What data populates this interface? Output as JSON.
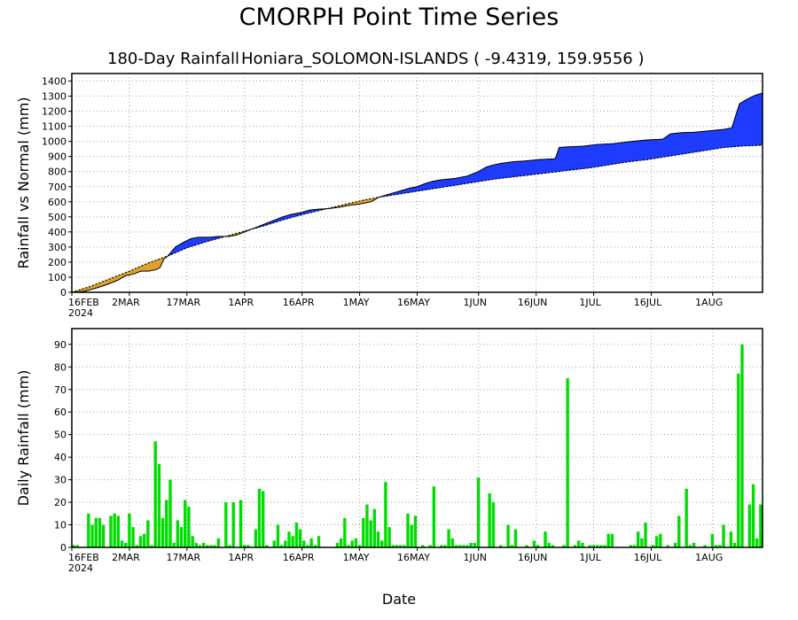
{
  "title": "CMORPH Point Time Series",
  "subtitle_left": "180-Day Rainfall",
  "subtitle_right": "Honiara_SOLOMON-ISLANDS ( -9.4319, 159.9556 )",
  "xlabel": "Date",
  "colors": {
    "surplus": "#1e3cff",
    "deficit": "#e0a030",
    "bars": "#00dd00",
    "grid": "#a0a0a0"
  },
  "chart_data": [
    {
      "type": "area",
      "ylabel": "Rainfall vs Normal (mm)",
      "ylim": [
        0,
        1450
      ],
      "yticks": [
        0,
        100,
        200,
        300,
        400,
        500,
        600,
        700,
        800,
        900,
        1000,
        1100,
        1200,
        1300,
        1400
      ],
      "xticks": [
        {
          "day": 0,
          "label": "16FEB",
          "sub": "2024"
        },
        {
          "day": 15,
          "label": "2MAR",
          "sub": ""
        },
        {
          "day": 30,
          "label": "17MAR",
          "sub": ""
        },
        {
          "day": 45,
          "label": "1APR",
          "sub": ""
        },
        {
          "day": 60,
          "label": "16APR",
          "sub": ""
        },
        {
          "day": 75,
          "label": "1MAY",
          "sub": ""
        },
        {
          "day": 90,
          "label": "16MAY",
          "sub": ""
        },
        {
          "day": 106,
          "label": "1JUN",
          "sub": ""
        },
        {
          "day": 121,
          "label": "16JUN",
          "sub": ""
        },
        {
          "day": 136,
          "label": "1JUL",
          "sub": ""
        },
        {
          "day": 151,
          "label": "16JUL",
          "sub": ""
        },
        {
          "day": 167,
          "label": "1AUG",
          "sub": ""
        }
      ],
      "xlim": [
        0,
        180
      ],
      "grid": true,
      "series": [
        {
          "role": "actual",
          "points": [
            [
              0,
              0
            ],
            [
              3,
              5
            ],
            [
              6,
              25
            ],
            [
              9,
              50
            ],
            [
              12,
              80
            ],
            [
              14,
              110
            ],
            [
              16,
              120
            ],
            [
              18,
              140
            ],
            [
              20,
              140
            ],
            [
              22,
              150
            ],
            [
              23,
              165
            ],
            [
              24,
              220
            ],
            [
              25,
              240
            ],
            [
              27,
              300
            ],
            [
              29,
              330
            ],
            [
              31,
              355
            ],
            [
              33,
              365
            ],
            [
              36,
              365
            ],
            [
              38,
              370
            ],
            [
              41,
              370
            ],
            [
              43,
              380
            ],
            [
              45,
              400
            ],
            [
              47,
              420
            ],
            [
              49,
              440
            ],
            [
              51,
              460
            ],
            [
              53,
              480
            ],
            [
              55,
              500
            ],
            [
              57,
              515
            ],
            [
              60,
              530
            ],
            [
              62,
              545
            ],
            [
              64,
              550
            ],
            [
              67,
              555
            ],
            [
              70,
              565
            ],
            [
              72,
              575
            ],
            [
              75,
              585
            ],
            [
              78,
              600
            ],
            [
              80,
              630
            ],
            [
              82,
              645
            ],
            [
              84,
              660
            ],
            [
              86,
              675
            ],
            [
              88,
              690
            ],
            [
              90,
              700
            ],
            [
              92,
              720
            ],
            [
              94,
              735
            ],
            [
              96,
              745
            ],
            [
              98,
              750
            ],
            [
              100,
              755
            ],
            [
              103,
              770
            ],
            [
              106,
              800
            ],
            [
              108,
              830
            ],
            [
              110,
              845
            ],
            [
              112,
              855
            ],
            [
              115,
              865
            ],
            [
              118,
              870
            ],
            [
              122,
              880
            ],
            [
              126,
              885
            ],
            [
              127,
              960
            ],
            [
              130,
              965
            ],
            [
              133,
              968
            ],
            [
              137,
              980
            ],
            [
              141,
              985
            ],
            [
              146,
              1000
            ],
            [
              150,
              1010
            ],
            [
              154,
              1015
            ],
            [
              156,
              1050
            ],
            [
              159,
              1058
            ],
            [
              162,
              1060
            ],
            [
              166,
              1070
            ],
            [
              170,
              1080
            ],
            [
              172,
              1090
            ],
            [
              173,
              1170
            ],
            [
              174,
              1250
            ],
            [
              176,
              1280
            ],
            [
              178,
              1305
            ],
            [
              180,
              1320
            ]
          ]
        },
        {
          "role": "normal",
          "points": [
            [
              0,
              0
            ],
            [
              5,
              40
            ],
            [
              10,
              90
            ],
            [
              15,
              140
            ],
            [
              20,
              195
            ],
            [
              25,
              240
            ],
            [
              30,
              295
            ],
            [
              35,
              335
            ],
            [
              40,
              370
            ],
            [
              45,
              405
            ],
            [
              50,
              440
            ],
            [
              55,
              480
            ],
            [
              60,
              515
            ],
            [
              65,
              545
            ],
            [
              70,
              575
            ],
            [
              75,
              605
            ],
            [
              80,
              630
            ],
            [
              85,
              650
            ],
            [
              90,
              670
            ],
            [
              95,
              690
            ],
            [
              100,
              710
            ],
            [
              105,
              730
            ],
            [
              110,
              750
            ],
            [
              115,
              765
            ],
            [
              120,
              780
            ],
            [
              125,
              795
            ],
            [
              130,
              810
            ],
            [
              135,
              825
            ],
            [
              140,
              845
            ],
            [
              145,
              865
            ],
            [
              150,
              880
            ],
            [
              155,
              900
            ],
            [
              160,
              920
            ],
            [
              165,
              940
            ],
            [
              170,
              960
            ],
            [
              175,
              970
            ],
            [
              180,
              975
            ]
          ]
        }
      ]
    },
    {
      "type": "bar",
      "ylabel": "Daily Rainfall (mm)",
      "ylim": [
        0,
        97
      ],
      "yticks": [
        0,
        10,
        20,
        30,
        40,
        50,
        60,
        70,
        80,
        90
      ],
      "xticks": [
        {
          "day": 0,
          "label": "16FEB",
          "sub": "2024"
        },
        {
          "day": 15,
          "label": "2MAR",
          "sub": ""
        },
        {
          "day": 30,
          "label": "17MAR",
          "sub": ""
        },
        {
          "day": 45,
          "label": "1APR",
          "sub": ""
        },
        {
          "day": 60,
          "label": "16APR",
          "sub": ""
        },
        {
          "day": 75,
          "label": "1MAY",
          "sub": ""
        },
        {
          "day": 90,
          "label": "16MAY",
          "sub": ""
        },
        {
          "day": 106,
          "label": "1JUN",
          "sub": ""
        },
        {
          "day": 121,
          "label": "16JUN",
          "sub": ""
        },
        {
          "day": 136,
          "label": "1JUL",
          "sub": ""
        },
        {
          "day": 151,
          "label": "16JUL",
          "sub": ""
        },
        {
          "day": 167,
          "label": "1AUG",
          "sub": ""
        }
      ],
      "xlim": [
        0,
        180
      ],
      "grid": true,
      "values": [
        1,
        1,
        0,
        0,
        15,
        10,
        13,
        13,
        10,
        0,
        14,
        15,
        14,
        3,
        2,
        15,
        9,
        1,
        5,
        6,
        12,
        1,
        47,
        37,
        13,
        21,
        30,
        2,
        12,
        9,
        21,
        18,
        5,
        2,
        1,
        2,
        1,
        1,
        1,
        4,
        0,
        20,
        1,
        20,
        0,
        21,
        1,
        1,
        0,
        8,
        26,
        25,
        1,
        0,
        3,
        10,
        1,
        3,
        7,
        5,
        11,
        8,
        3,
        1,
        4,
        1,
        5,
        0,
        0,
        0,
        0,
        2,
        4,
        13,
        1,
        3,
        4,
        1,
        13,
        19,
        12,
        17,
        7,
        3,
        29,
        9,
        1,
        1,
        1,
        1,
        15,
        10,
        14,
        0,
        1,
        0,
        1,
        27,
        0,
        1,
        1,
        8,
        4,
        1,
        1,
        1,
        1,
        2,
        2,
        31,
        0,
        0,
        24,
        20,
        0,
        1,
        0,
        10,
        1,
        8,
        0,
        0,
        1,
        0,
        3,
        1,
        0,
        7,
        2,
        1,
        0,
        0,
        1,
        75,
        0,
        1,
        3,
        2,
        0,
        1,
        1,
        1,
        1,
        1,
        6,
        6,
        0,
        0,
        0,
        0,
        1,
        1,
        7,
        4,
        11,
        0,
        1,
        5,
        6,
        0,
        1,
        0,
        2,
        14,
        0,
        26,
        1,
        2,
        0,
        0,
        1,
        0,
        6,
        1,
        1,
        10,
        0,
        7,
        2,
        77,
        90,
        0,
        19,
        28,
        4,
        19
      ]
    }
  ]
}
